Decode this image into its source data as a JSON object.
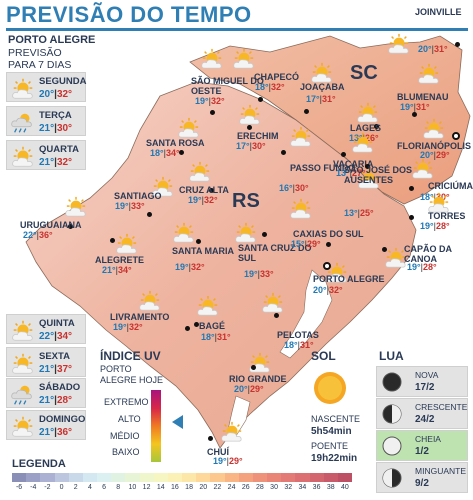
{
  "title": "PREVISÃO DO TEMPO",
  "header": {
    "city": "PORTO ALEGRE",
    "subtitle": "PREVISÃO PARA 7 DIAS"
  },
  "forecast": [
    {
      "day": "SEGUNDA",
      "min": "20°",
      "max": "32°",
      "icon": "partly-cloudy-icon"
    },
    {
      "day": "TERÇA",
      "min": "21°",
      "max": "30°",
      "icon": "rain-icon"
    },
    {
      "day": "QUARTA",
      "min": "21°",
      "max": "32°",
      "icon": "partly-cloudy-icon"
    },
    {
      "day": "QUINTA",
      "min": "22°",
      "max": "34°",
      "icon": "partly-cloudy-icon"
    },
    {
      "day": "SEXTA",
      "min": "21°",
      "max": "37°",
      "icon": "partly-cloudy-icon"
    },
    {
      "day": "SÁBADO",
      "min": "21°",
      "max": "28°",
      "icon": "rain-icon"
    },
    {
      "day": "DOMINGO",
      "min": "21°",
      "max": "36°",
      "icon": "partly-cloudy-icon"
    }
  ],
  "states": {
    "sc": "SC",
    "rs": "RS"
  },
  "cities": [
    {
      "name": "JOINVILLE",
      "min": "20°",
      "max": "31°"
    },
    {
      "name": "CHAPECÓ",
      "min": "18°",
      "max": "32°"
    },
    {
      "name": "SÃO MIGUEL DO OESTE",
      "min": "19°",
      "max": "32°"
    },
    {
      "name": "JOAÇABA",
      "min": "17°",
      "max": "31°"
    },
    {
      "name": "BLUMENAU",
      "min": "19°",
      "max": "31°"
    },
    {
      "name": "LAGES",
      "min": "13°",
      "max": "26°"
    },
    {
      "name": "FLORIANÓPOLIS",
      "min": "20°",
      "max": "29°"
    },
    {
      "name": "SANTA ROSA",
      "min": "18°",
      "max": "34°"
    },
    {
      "name": "ERECHIM",
      "min": "17°",
      "max": "30°"
    },
    {
      "name": "PASSO FUNDO",
      "min": "16°",
      "max": "30°"
    },
    {
      "name": "VACARIA",
      "min": "13°",
      "max": "27°"
    },
    {
      "name": "SÃO JOSÉ DOS AUSENTES",
      "min": "13°",
      "max": "25°"
    },
    {
      "name": "CRICIÚMA",
      "min": "18°",
      "max": "30°"
    },
    {
      "name": "SANTIAGO",
      "min": "19°",
      "max": "33°"
    },
    {
      "name": "CRUZ ALTA",
      "min": "19°",
      "max": "32°"
    },
    {
      "name": "TORRES",
      "min": "19°",
      "max": "28°"
    },
    {
      "name": "URUGUAIANA",
      "min": "22°",
      "max": "36°"
    },
    {
      "name": "SANTA MARIA",
      "min": "19°",
      "max": "32°"
    },
    {
      "name": "SANTA CRUZ DO SUL",
      "min": "19°",
      "max": "33°"
    },
    {
      "name": "CAXIAS DO SUL",
      "min": "15°",
      "max": "29°"
    },
    {
      "name": "CAPÃO DA CANOA",
      "min": "19°",
      "max": "28°"
    },
    {
      "name": "ALEGRETE",
      "min": "21°",
      "max": "34°"
    },
    {
      "name": "PORTO ALEGRE",
      "min": "20°",
      "max": "32°"
    },
    {
      "name": "LIVRAMENTO",
      "min": "19°",
      "max": "32°"
    },
    {
      "name": "BAGÉ",
      "min": "18°",
      "max": "31°"
    },
    {
      "name": "PELOTAS",
      "min": "18°",
      "max": "31°"
    },
    {
      "name": "RIO GRANDE",
      "min": "20°",
      "max": "29°"
    },
    {
      "name": "CHUÍ",
      "min": "19°",
      "max": "29°"
    }
  ],
  "uv": {
    "title": "ÍNDICE UV",
    "subtitle": "PORTO ALEGRE HOJE",
    "levels": [
      "EXTREMO",
      "ALTO",
      "MÉDIO",
      "BAIXO"
    ],
    "current": "ALTO",
    "colors": [
      "#a8137d",
      "#d7264a",
      "#f07a22",
      "#f4c520",
      "#a7c63a"
    ]
  },
  "sol": {
    "title": "SOL",
    "sunrise_label": "NASCENTE",
    "sunrise": "5h54min",
    "sunset_label": "POENTE",
    "sunset": "19h22min"
  },
  "lua": {
    "title": "LUA",
    "phases": [
      {
        "name": "NOVA",
        "date": "17/2",
        "icon": "new-moon-icon"
      },
      {
        "name": "CRESCENTE",
        "date": "24/2",
        "icon": "first-quarter-moon-icon"
      },
      {
        "name": "CHEIA",
        "date": "1/2",
        "icon": "full-moon-icon",
        "current": true
      },
      {
        "name": "MINGUANTE",
        "date": "9/2",
        "icon": "last-quarter-moon-icon"
      }
    ]
  },
  "legend": {
    "title": "LEGENDA",
    "ticks": [
      "-6",
      "-4",
      "-2",
      "0",
      "2",
      "4",
      "6",
      "8",
      "10",
      "12",
      "14",
      "16",
      "18",
      "20",
      "22",
      "24",
      "26",
      "28",
      "30",
      "32",
      "34",
      "36",
      "38",
      "40"
    ],
    "colors": [
      "#8a8fb8",
      "#9aa0c6",
      "#aab1d2",
      "#bcc6de",
      "#c9d9ea",
      "#d4e8f2",
      "#dbf0f0",
      "#e0f2e2",
      "#e8f4d6",
      "#eff6cc",
      "#f6f6c2",
      "#fbf1b6",
      "#fde7a8",
      "#fdd89a",
      "#fcc88e",
      "#f9b684",
      "#f3a27d",
      "#ee9279",
      "#e98577",
      "#e37a75",
      "#dc6f72",
      "#d3656e",
      "#c85a69",
      "#bd5064"
    ]
  }
}
